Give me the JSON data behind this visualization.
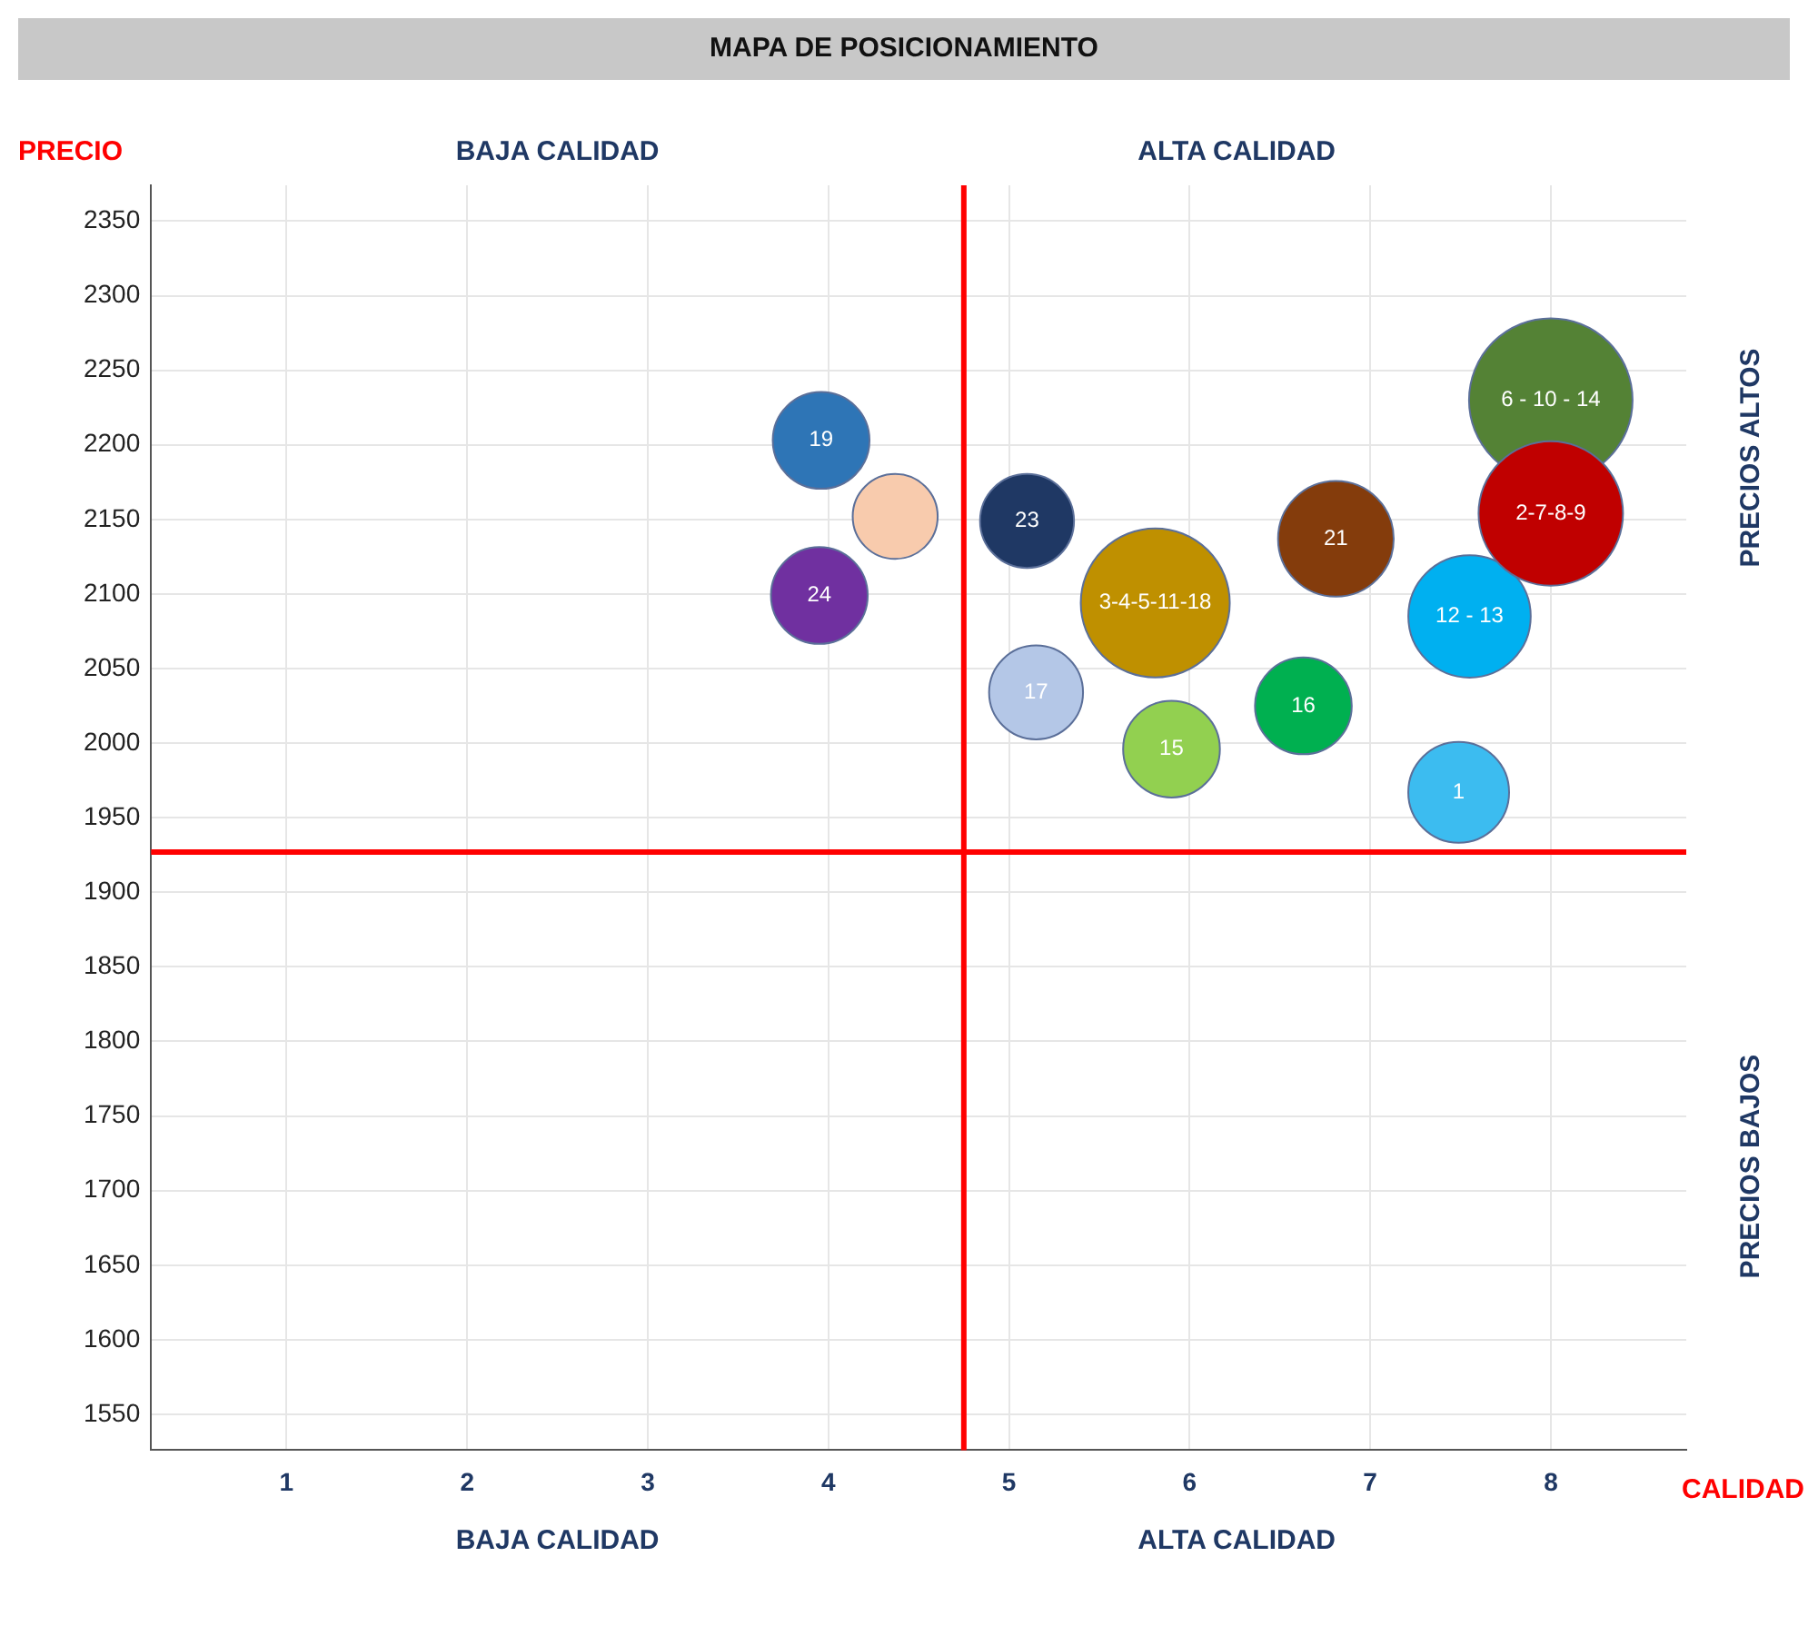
{
  "chart_data": {
    "type": "bubble",
    "title": "MAPA DE POSICIONAMIENTO",
    "xlabel": "CALIDAD",
    "ylabel": "PRECIO",
    "x": [
      3.96,
      4.37,
      3.95,
      5.1,
      5.81,
      5.15,
      5.9,
      6.63,
      6.81,
      7.55,
      7.49,
      8.0,
      8.0
    ],
    "values": [
      2203,
      2152,
      2099,
      2149,
      2094,
      2034,
      1996,
      2025,
      2137,
      2085,
      1967,
      2230,
      2154
    ],
    "sizes": [
      0.35,
      0.27,
      0.35,
      0.33,
      0.83,
      0.33,
      0.35,
      0.35,
      0.5,
      0.56,
      0.38,
      1,
      0.78
    ],
    "colors": [
      "#2e75b6",
      "#f8cbad",
      "#7030a0",
      "#1f3864",
      "#bf9000",
      "#b4c7e7",
      "#92d050",
      "#00b050",
      "#843c0c",
      "#00b0f0",
      "#3cbcf0",
      "#548235",
      "#c00000"
    ],
    "xlim": [
      0.25,
      8.75
    ],
    "xticks": [
      1,
      2,
      3,
      4,
      5,
      6,
      7,
      8
    ],
    "ylim": [
      1526,
      2374
    ],
    "yticks": [
      1550,
      1600,
      1650,
      1700,
      1750,
      1800,
      1850,
      1900,
      1950,
      2000,
      2050,
      2100,
      2150,
      2200,
      2250,
      2300,
      2350
    ],
    "grid": true,
    "legend": false,
    "ref_lines": [
      {
        "axis": "x",
        "value": 4.75,
        "color": "#ff0000"
      },
      {
        "axis": "y",
        "value": 1927,
        "color": "#ff0000"
      }
    ],
    "annotations": [
      "BAJA CALIDAD",
      "ALTA CALIDAD",
      "BAJA CALIDAD",
      "ALTA CALIDAD",
      "PRECIOS ALTOS",
      "PRECIOS BAJOS",
      {
        "text": "19",
        "x": 3.96,
        "y": 2203
      },
      {
        "text": "24",
        "x": 3.95,
        "y": 2099
      },
      {
        "text": "23",
        "x": 5.1,
        "y": 2149
      },
      {
        "text": "3-4-5-11-18",
        "x": 5.81,
        "y": 2094
      },
      {
        "text": "17",
        "x": 5.15,
        "y": 2034
      },
      {
        "text": "15",
        "x": 5.9,
        "y": 1996
      },
      {
        "text": "16",
        "x": 6.63,
        "y": 2025
      },
      {
        "text": "21",
        "x": 6.81,
        "y": 2137
      },
      {
        "text": "12 - 13",
        "x": 7.55,
        "y": 2085
      },
      {
        "text": "1",
        "x": 7.49,
        "y": 1967
      },
      {
        "text": "6 - 10 - 14",
        "x": 8.0,
        "y": 2230
      },
      {
        "text": "2-7-8-9",
        "x": 8.0,
        "y": 2154
      }
    ]
  }
}
